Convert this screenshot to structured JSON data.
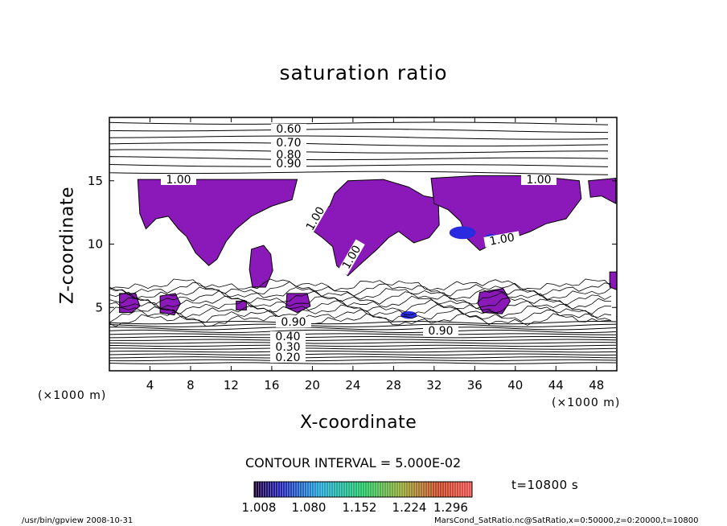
{
  "chart_data": {
    "type": "heatmap",
    "title": "saturation ratio",
    "xlabel": "X-coordinate",
    "ylabel": "Z-coordinate",
    "x_unit": "(×1000 m)",
    "z_unit": "(×1000 m)",
    "xlim": [
      0,
      50
    ],
    "ylim": [
      0,
      20
    ],
    "x_ticks": [
      "4",
      "8",
      "12",
      "16",
      "20",
      "24",
      "28",
      "32",
      "36",
      "40",
      "44",
      "48"
    ],
    "y_ticks": [
      "5",
      "10",
      "15"
    ],
    "contour_labels": [
      "0.60",
      "0.70",
      "0.80",
      "0.90",
      "1.00",
      "1.00",
      "1.00",
      "1.00",
      "1.00",
      "0.90",
      "0.40",
      "0.30",
      "0.20",
      "0.90"
    ],
    "contour_interval": "CONTOUR INTERVAL = 5.000E-02",
    "colorbar_ticks": [
      "1.008",
      "1.080",
      "1.152",
      "1.224",
      "1.296"
    ],
    "colorbar_range": [
      1.0,
      1.3
    ],
    "time_label": "t=10800 s",
    "shading_colors": {
      "main": "#8b18b8",
      "high": "#2a2ae0"
    },
    "upper_contours": [
      0.6,
      0.65,
      0.7,
      0.75,
      0.8,
      0.85,
      0.9,
      0.95
    ],
    "lower_contours": [
      0.2,
      0.25,
      0.3,
      0.35,
      0.4,
      0.45,
      0.5,
      0.55,
      0.6,
      0.65,
      0.7,
      0.75,
      0.8,
      0.85,
      0.9
    ]
  },
  "footer": {
    "left": "/usr/bin/gpview   2008-10-31",
    "right": "MarsCond_SatRatio.nc@SatRatio,x=0:50000,z=0:20000,t=10800"
  }
}
